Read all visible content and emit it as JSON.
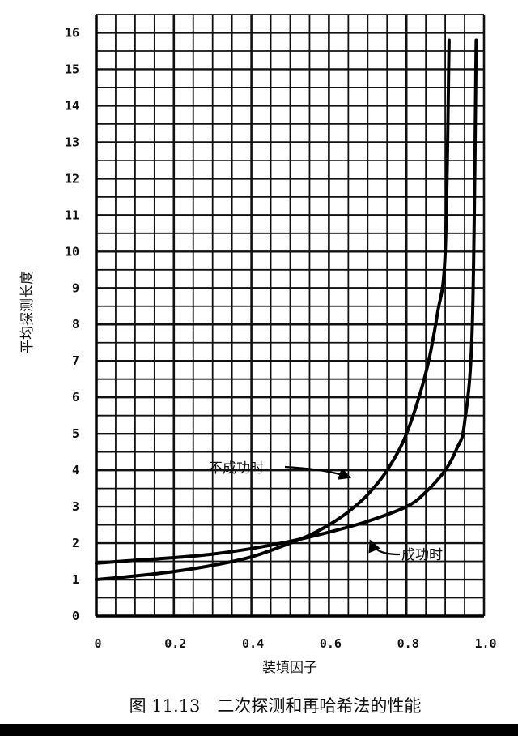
{
  "chart_data": {
    "type": "line",
    "title": "",
    "xlabel": "装填因子",
    "ylabel": "平均探测长度",
    "xlim": [
      0,
      1.0
    ],
    "ylim": [
      0,
      16.5
    ],
    "grid": true,
    "x_ticks": [
      {
        "value": 0,
        "label": "0"
      },
      {
        "value": 0.2,
        "label": "0.2"
      },
      {
        "value": 0.4,
        "label": "0.4"
      },
      {
        "value": 0.6,
        "label": "0.6"
      },
      {
        "value": 0.8,
        "label": "0.8"
      },
      {
        "value": 1.0,
        "label": "1.0"
      }
    ],
    "y_ticks": [
      {
        "value": 0,
        "label": "0"
      },
      {
        "value": 1,
        "label": "1"
      },
      {
        "value": 2,
        "label": "2"
      },
      {
        "value": 3,
        "label": "3"
      },
      {
        "value": 4,
        "label": "4"
      },
      {
        "value": 5,
        "label": "5"
      },
      {
        "value": 6,
        "label": "6"
      },
      {
        "value": 7,
        "label": "7"
      },
      {
        "value": 8,
        "label": "8"
      },
      {
        "value": 9,
        "label": "9"
      },
      {
        "value": 10,
        "label": "10"
      },
      {
        "value": 11,
        "label": "11"
      },
      {
        "value": 12,
        "label": "12"
      },
      {
        "value": 13,
        "label": "13"
      },
      {
        "value": 14,
        "label": "14"
      },
      {
        "value": 15,
        "label": "15"
      },
      {
        "value": 16,
        "label": "16"
      }
    ],
    "series": [
      {
        "annotation": "不成功时",
        "x": [
          0,
          0.1,
          0.2,
          0.3,
          0.4,
          0.5,
          0.55,
          0.6,
          0.65,
          0.7,
          0.75,
          0.8,
          0.85,
          0.88,
          0.9,
          0.91
        ],
        "y": [
          1.0,
          1.1,
          1.22,
          1.39,
          1.62,
          2.0,
          2.22,
          2.5,
          2.86,
          3.33,
          4.0,
          5.0,
          6.67,
          8.3,
          10.0,
          15.8
        ]
      },
      {
        "annotation": "成功时",
        "x": [
          0,
          0.1,
          0.2,
          0.3,
          0.4,
          0.5,
          0.6,
          0.7,
          0.8,
          0.85,
          0.9,
          0.93,
          0.95,
          0.97,
          0.98
        ],
        "y": [
          1.45,
          1.53,
          1.6,
          1.7,
          1.85,
          2.05,
          2.3,
          2.6,
          3.0,
          3.4,
          4.0,
          4.6,
          5.3,
          8.0,
          15.8
        ]
      }
    ],
    "annotations": [
      {
        "text": "不成功时",
        "series": 0,
        "arrow_to": [
          0.655,
          3.8
        ]
      },
      {
        "text": "成功时",
        "series": 1,
        "arrow_to": [
          0.7,
          2.25
        ]
      }
    ]
  },
  "caption": "图 11.13　二次探测和再哈希法的性能"
}
